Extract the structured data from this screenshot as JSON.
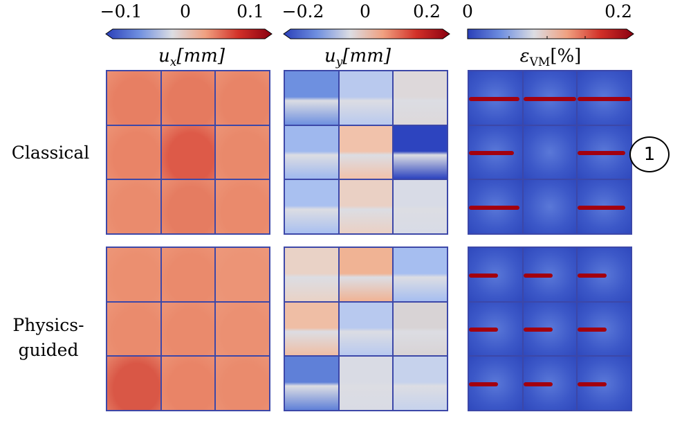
{
  "colorbars": [
    {
      "ticks": [
        "−0.1",
        "0",
        "0.1"
      ],
      "label_symbol": "u",
      "label_sub": "x",
      "label_unit": "[mm]",
      "colors": [
        "#2a3fb8",
        "#6f8fe0",
        "#dcdde3",
        "#f0a080",
        "#d23028",
        "#8a0010"
      ]
    },
    {
      "ticks": [
        "−0.2",
        "0",
        "0.2"
      ],
      "label_symbol": "u",
      "label_sub": "y",
      "label_unit": "[mm]",
      "colors": [
        "#2a3fb8",
        "#6f8fe0",
        "#dcdde3",
        "#f0a080",
        "#d23028",
        "#8a0010"
      ]
    },
    {
      "ticks": [
        "0",
        "0.2"
      ],
      "label_symbol": "ε",
      "label_sub": "VM",
      "label_unit": "[%]",
      "colors": [
        "#2a3fb8",
        "#6f8fe0",
        "#dcdde3",
        "#f0a080",
        "#d23028",
        "#8a0010"
      ]
    }
  ],
  "rows": [
    {
      "label_line1": "Classical",
      "label_line2": "",
      "ux_tiles": [
        "#e77f63",
        "#e57a5f",
        "#e88467",
        "#e98467",
        "#dd5a48",
        "#e9896b",
        "#ea8b6d",
        "#e57c61",
        "#ea8a6c"
      ],
      "uy_tiles": [
        "#6e90e0",
        "#b9c9ee",
        "#ddd8da",
        "#9fb8ee",
        "#f1c2ab",
        "#2d44bf",
        "#a9c0f0",
        "#ead0c4",
        "#d8dbe6"
      ],
      "evm_crack_tiles": [
        true,
        true,
        true,
        true,
        false,
        true,
        true,
        false,
        true
      ]
    },
    {
      "label_line1": "Physics-",
      "label_line2": "guided",
      "ux_tiles": [
        "#eb8f70",
        "#ea8a6c",
        "#ec9476",
        "#ea8b6d",
        "#ea8a6c",
        "#eb9072",
        "#d95746",
        "#e98467",
        "#ea8b6d"
      ],
      "uy_tiles": [
        "#e9d2c6",
        "#f0b394",
        "#a6bef0",
        "#efbea5",
        "#b8c9ef",
        "#d8d3d5",
        "#5f80d8",
        "#d9dbe4",
        "#c6d2ec"
      ],
      "evm_crack_tiles": [
        true,
        true,
        true,
        true,
        true,
        true,
        true,
        true,
        true
      ]
    }
  ],
  "annotation": "1"
}
